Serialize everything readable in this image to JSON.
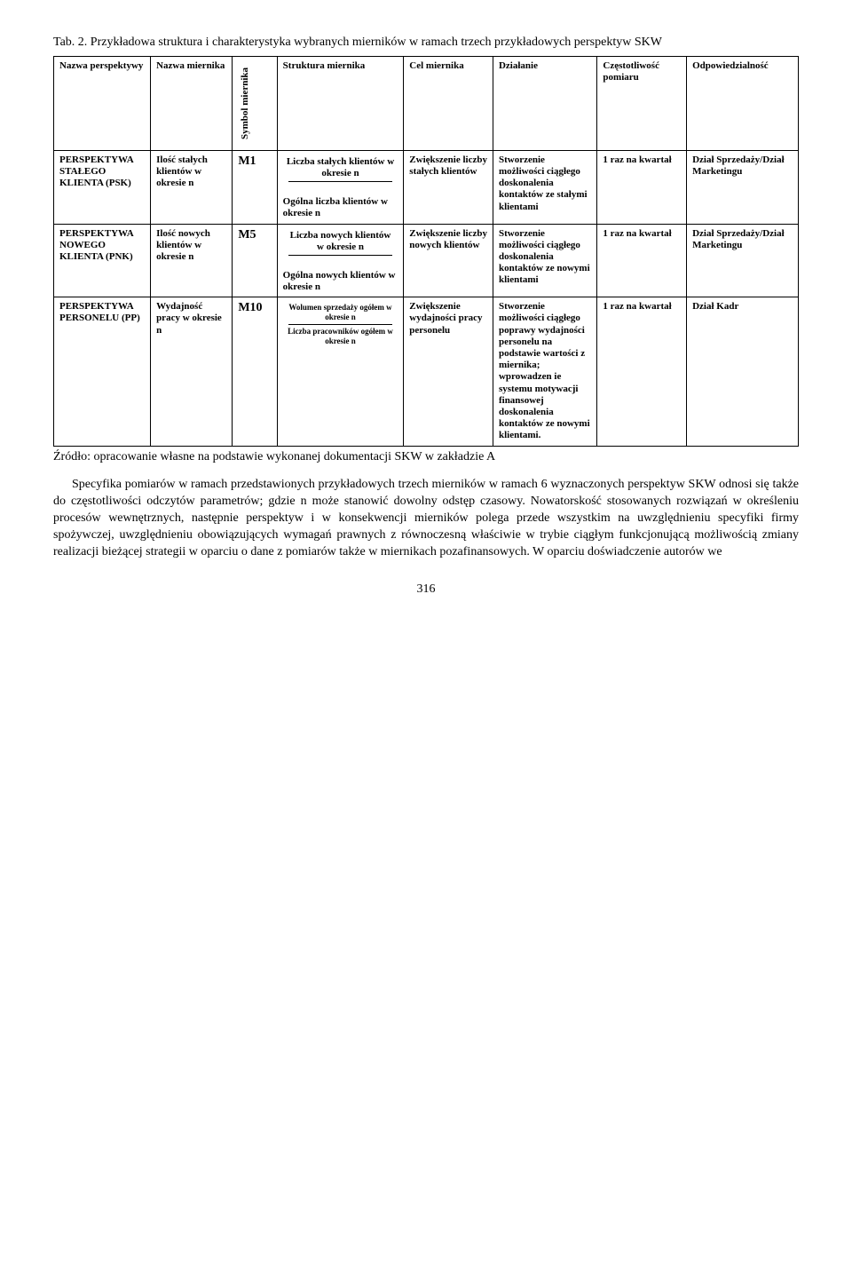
{
  "caption": "Tab. 2. Przykładowa struktura i charakterystyka wybranych mierników w ramach trzech przykładowych perspektyw SKW",
  "headers": {
    "c1": "Nazwa perspektywy",
    "c2": "Nazwa miernika",
    "c3": "Symbol miernika",
    "c4": "Struktura miernika",
    "c5": "Cel miernika",
    "c6": "Działanie",
    "c7": "Częstotliwość pomiaru",
    "c8": "Odpowiedzialność"
  },
  "row1": {
    "persp": "PERSPEKTYWA STAŁEGO KLIENTA (PSK)",
    "nazwa": "Ilość stałych klientów w okresie n",
    "sym": "M1",
    "struct_num": "Liczba stałych klientów w okresie n",
    "struct_den": "Ogólna liczba klientów w okresie n",
    "cel": "Zwiększenie liczby stałych klientów",
    "dzial": "Stworzenie możliwości ciągłego doskonalenia kontaktów ze stałymi klientami",
    "freq": "1 raz na kwartał",
    "odp": "Dział Sprzedaży/Dział Marketingu"
  },
  "row2": {
    "persp": "PERSPEKTYWA NOWEGO KLIENTA (PNK)",
    "nazwa": "Ilość nowych klientów w okresie n",
    "sym": "M5",
    "struct_num": "Liczba nowych klientów w okresie n",
    "struct_extra": "Ogólna nowych klientów w okresie n",
    "cel": "Zwiększenie liczby nowych klientów",
    "dzial": "Stworzenie możliwości ciągłego doskonalenia kontaktów ze nowymi klientami",
    "freq": "1 raz na kwartał",
    "odp": "Dział Sprzedaży/Dział Marketingu"
  },
  "row3": {
    "persp": "PERSPEKTYWA PERSONELU (PP)",
    "nazwa": "Wydajność pracy w okresie n",
    "sym": "M10",
    "struct_num": "Wolumen sprzedaży ogółem w okresie n",
    "struct_den": "Liczba pracowników ogółem w okresie n",
    "cel": "Zwiększenie wydajności pracy personelu",
    "dzial": "Stworzenie możliwości ciągłego poprawy wydajności personelu na podstawie wartości z miernika; wprowadzen ie systemu motywacji finansowej doskonalenia kontaktów ze nowymi klientami.",
    "freq": "1 raz na kwartał",
    "odp": "Dział Kadr"
  },
  "source": "Źródło: opracowanie własne na podstawie wykonanej dokumentacji SKW w zakładzie A",
  "para": "Specyfika pomiarów w ramach przedstawionych przykładowych trzech mierników w ramach 6 wyznaczonych perspektyw SKW odnosi się także do częstotliwości odczytów parametrów; gdzie n może stanowić dowolny odstęp czasowy. Nowatorskość stosowanych rozwiązań  w określeniu procesów wewnętrznych, następnie perspektyw i w konsekwencji mierników polega przede wszystkim na uwzględnieniu specyfiki firmy spożywczej, uwzględnieniu obowiązujących wymagań prawnych z równoczesną właściwie w trybie ciągłym funkcjonującą możliwością zmiany realizacji bieżącej strategii w oparciu o dane z pomiarów także w miernikach pozafinansowych. W oparciu doświadczenie autorów we",
  "pagenum": "316"
}
